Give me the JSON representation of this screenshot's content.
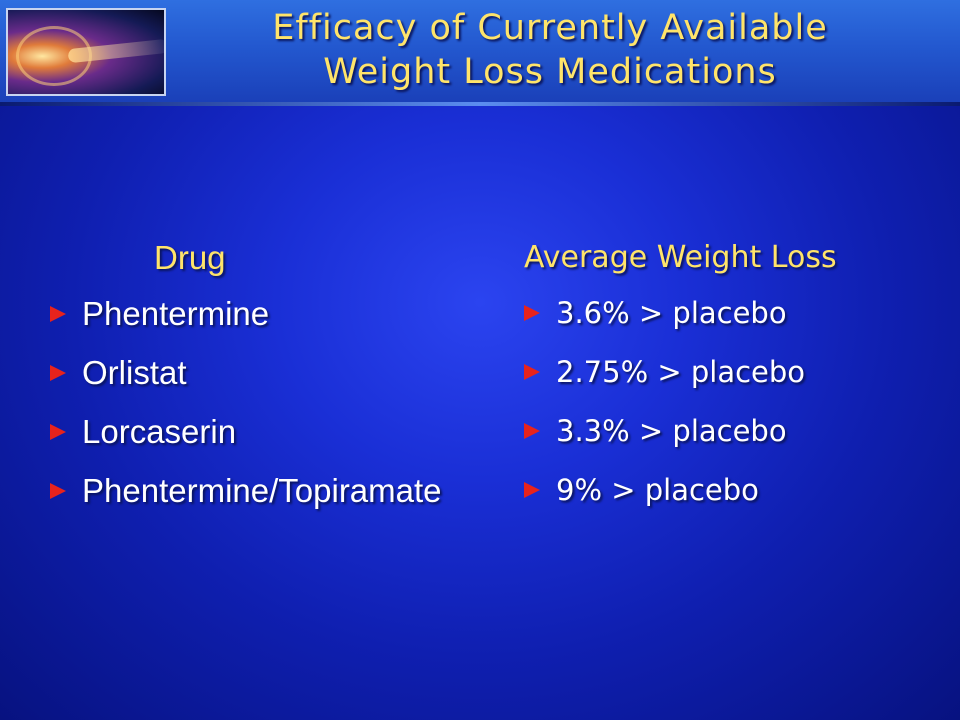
{
  "slide": {
    "title_lines": [
      "Efficacy of Currently Available",
      "Weight Loss Medications"
    ],
    "colors": {
      "title": "#ffe46a",
      "bullet": "#e8231c",
      "body_text": "#ffffff",
      "background": "#1a2fd6"
    }
  },
  "drug_column": {
    "header": "Drug",
    "items": [
      "Phentermine",
      "Orlistat",
      "Lorcaserin",
      "Phentermine/Topiramate"
    ]
  },
  "weight_loss_column": {
    "header": "Average Weight Loss",
    "items": [
      "3.6% > placebo",
      "2.75% > placebo",
      "3.3% > placebo",
      "9% > placebo"
    ]
  }
}
